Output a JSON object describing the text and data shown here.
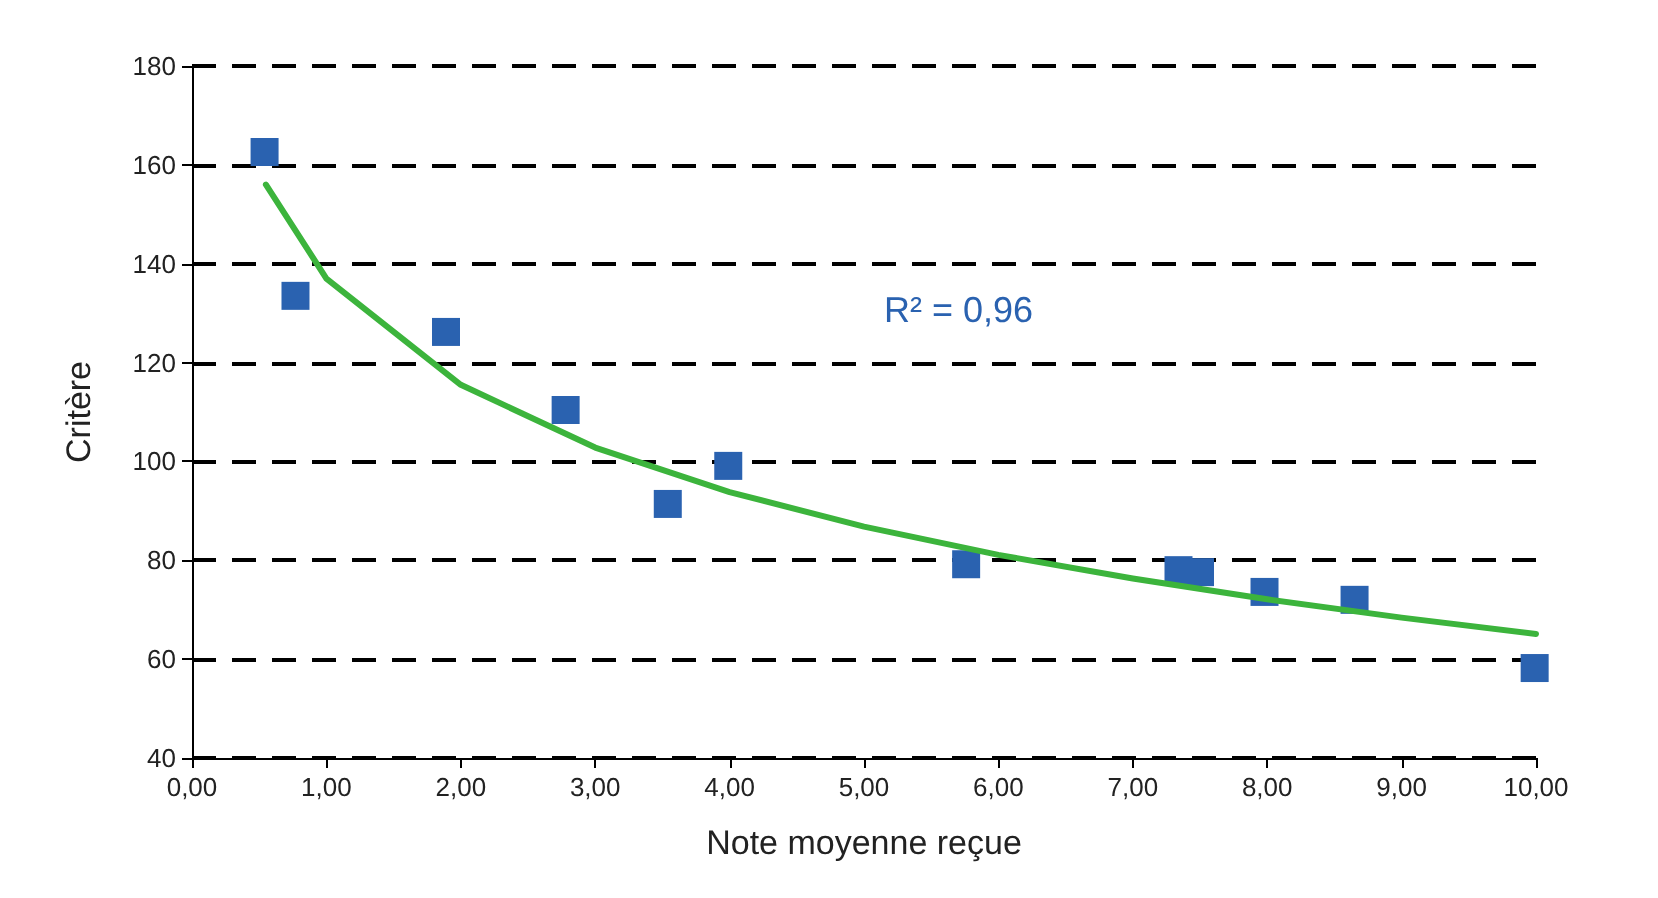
{
  "chart_data": {
    "type": "scatter",
    "xlabel": "Note moyenne reçue",
    "ylabel": "Critère",
    "annotations": [
      "R² = 0,96"
    ],
    "x": [
      0.54,
      0.77,
      1.89,
      2.78,
      3.54,
      3.99,
      5.76,
      7.34,
      7.5,
      7.98,
      8.65,
      9.99
    ],
    "series": [
      {
        "color": "#2a62b0",
        "values": [
          162.6,
          133.5,
          126.2,
          110.4,
          91.4,
          99.1,
          79.2,
          78.0,
          77.6,
          73.6,
          72.0,
          58.2
        ]
      },
      {
        "type": "line",
        "marker": "none",
        "color": "#3cb43c",
        "x": [
          0.55,
          1,
          2,
          3,
          4,
          5,
          6,
          7,
          8,
          9,
          10
        ],
        "values": [
          156,
          137,
          115.5,
          102.8,
          93.8,
          86.8,
          81.1,
          76.3,
          72.1,
          68.4,
          65.1
        ]
      }
    ],
    "xlim": [
      0,
      10
    ],
    "xticks": [
      {
        "value": 0,
        "label": "0,00"
      },
      {
        "value": 1,
        "label": "1,00"
      },
      {
        "value": 2,
        "label": "2,00"
      },
      {
        "value": 3,
        "label": "3,00"
      },
      {
        "value": 4,
        "label": "4,00"
      },
      {
        "value": 5,
        "label": "5,00"
      },
      {
        "value": 6,
        "label": "6,00"
      },
      {
        "value": 7,
        "label": "7,00"
      },
      {
        "value": 8,
        "label": "8,00"
      },
      {
        "value": 9,
        "label": "9,00"
      },
      {
        "value": 10,
        "label": "10,00"
      }
    ],
    "ylim": [
      40,
      180
    ],
    "yticks": [
      40,
      60,
      80,
      100,
      120,
      140,
      160,
      180
    ],
    "grid": "y",
    "marker": "square"
  }
}
